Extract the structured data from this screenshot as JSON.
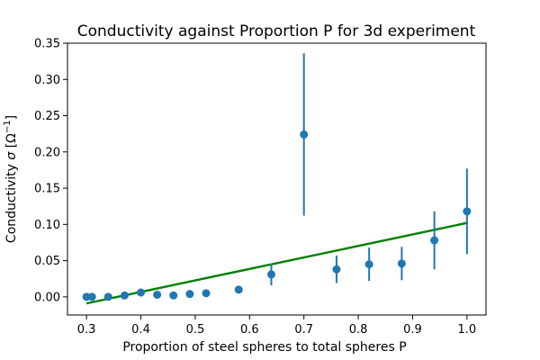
{
  "chart_data": {
    "type": "scatter",
    "title": "Conductivity against Proportion P for 3d experiment",
    "xlabel": "Proportion of steel spheres to total spheres P",
    "ylabel_prefix": "Conductivity ",
    "ylabel_symbol": "σ",
    "ylabel_unit": " [Ω",
    "ylabel_exp": "−1",
    "ylabel_close": "]",
    "xlim": [
      0.265,
      1.035
    ],
    "ylim": [
      -0.025,
      0.35
    ],
    "xticks": [
      0.3,
      0.4,
      0.5,
      0.6,
      0.7,
      0.8,
      0.9,
      1.0
    ],
    "xtick_labels": [
      "0.3",
      "0.4",
      "0.5",
      "0.6",
      "0.7",
      "0.8",
      "0.9",
      "1.0"
    ],
    "yticks": [
      0.0,
      0.05,
      0.1,
      0.15,
      0.2,
      0.25,
      0.3,
      0.35
    ],
    "ytick_labels": [
      "0.00",
      "0.05",
      "0.10",
      "0.15",
      "0.20",
      "0.25",
      "0.30",
      "0.35"
    ],
    "grid": false,
    "series": [
      {
        "kind": "errorbar",
        "color": "#1f77b4",
        "points": [
          {
            "x": 0.3,
            "y": 0.0,
            "err": 0.0
          },
          {
            "x": 0.31,
            "y": 0.0,
            "err": 0.0
          },
          {
            "x": 0.34,
            "y": 0.0,
            "err": 0.0
          },
          {
            "x": 0.37,
            "y": 0.002,
            "err": 0.0
          },
          {
            "x": 0.4,
            "y": 0.006,
            "err": 0.001
          },
          {
            "x": 0.43,
            "y": 0.003,
            "err": 0.0
          },
          {
            "x": 0.46,
            "y": 0.002,
            "err": 0.0
          },
          {
            "x": 0.49,
            "y": 0.004,
            "err": 0.0
          },
          {
            "x": 0.52,
            "y": 0.005,
            "err": 0.001
          },
          {
            "x": 0.58,
            "y": 0.01,
            "err": 0.004
          },
          {
            "x": 0.64,
            "y": 0.031,
            "err": 0.015
          },
          {
            "x": 0.7,
            "y": 0.224,
            "err": 0.112
          },
          {
            "x": 0.76,
            "y": 0.038,
            "err": 0.019
          },
          {
            "x": 0.82,
            "y": 0.045,
            "err": 0.023
          },
          {
            "x": 0.88,
            "y": 0.046,
            "err": 0.023
          },
          {
            "x": 0.94,
            "y": 0.078,
            "err": 0.04
          },
          {
            "x": 1.0,
            "y": 0.118,
            "err": 0.059
          }
        ]
      },
      {
        "kind": "line",
        "color": "#008000",
        "points": [
          {
            "x": 0.3,
            "y": -0.009
          },
          {
            "x": 1.0,
            "y": 0.102
          }
        ]
      }
    ]
  }
}
